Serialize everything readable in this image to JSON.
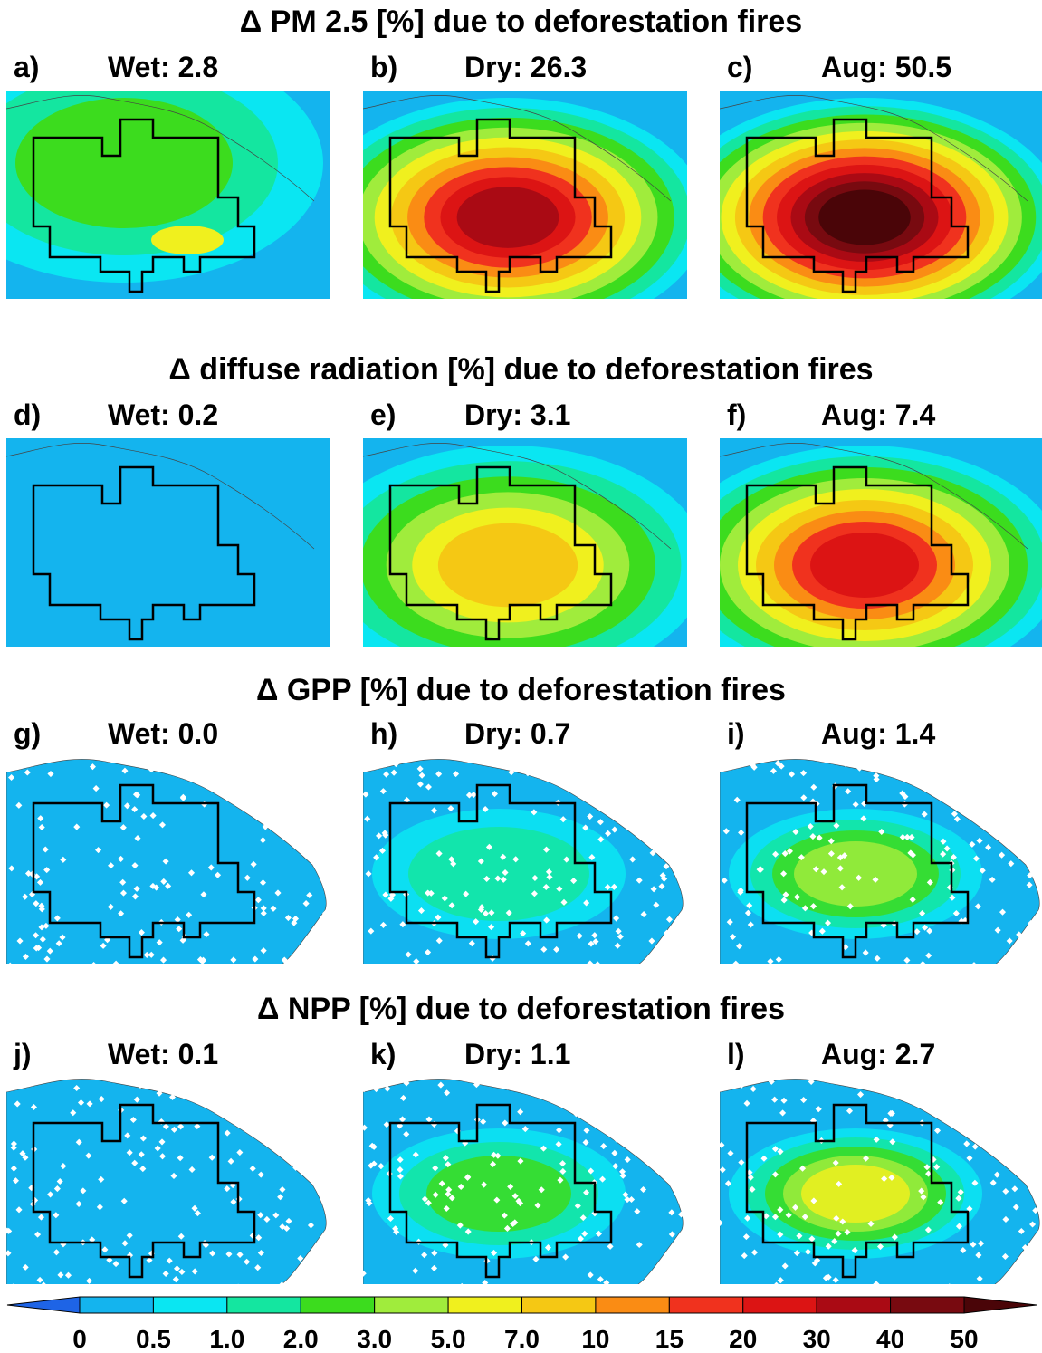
{
  "rows": [
    {
      "title": "Δ PM 2.5 [%] due to deforestation fires",
      "panels": [
        {
          "letter": "a)",
          "label": "Wet: 2.8",
          "intensity": 0.28,
          "style": "smooth"
        },
        {
          "letter": "b)",
          "label": "Dry: 26.3",
          "intensity": 0.82,
          "style": "smooth"
        },
        {
          "letter": "c)",
          "label": "Aug: 50.5",
          "intensity": 1.0,
          "style": "smooth"
        }
      ]
    },
    {
      "title": "Δ diffuse radiation [%] due to deforestation fires",
      "panels": [
        {
          "letter": "d)",
          "label": "Wet: 0.2",
          "intensity": 0.04,
          "style": "smooth"
        },
        {
          "letter": "e)",
          "label": "Dry: 3.1",
          "intensity": 0.5,
          "style": "smooth"
        },
        {
          "letter": "f)",
          "label": "Aug: 7.4",
          "intensity": 0.72,
          "style": "smooth"
        }
      ]
    },
    {
      "title": "Δ GPP [%] due to deforestation fires",
      "panels": [
        {
          "letter": "g)",
          "label": "Wet: 0.0",
          "intensity": 0.0,
          "style": "patchy"
        },
        {
          "letter": "h)",
          "label": "Dry: 0.7",
          "intensity": 0.18,
          "style": "patchy"
        },
        {
          "letter": "i)",
          "label": "Aug: 1.4",
          "intensity": 0.3,
          "style": "patchy"
        }
      ]
    },
    {
      "title": "Δ NPP [%] due to deforestation fires",
      "panels": [
        {
          "letter": "j)",
          "label": "Wet: 0.1",
          "intensity": 0.02,
          "style": "patchy"
        },
        {
          "letter": "k)",
          "label": "Dry: 1.1",
          "intensity": 0.26,
          "style": "patchy"
        },
        {
          "letter": "l)",
          "label": "Aug: 2.7",
          "intensity": 0.44,
          "style": "patchy"
        }
      ]
    }
  ],
  "colorbar": {
    "tick_labels": [
      "0",
      "0.5",
      "1.0",
      "2.0",
      "3.0",
      "5.0",
      "7.0",
      "10",
      "15",
      "20",
      "30",
      "40",
      "50"
    ],
    "colors": [
      "#1e64e6",
      "#14b4ee",
      "#0ae6f2",
      "#14e6a0",
      "#3cdc1e",
      "#a0ec3c",
      "#f0f01e",
      "#f5c814",
      "#fa8c14",
      "#f0321e",
      "#dc1414",
      "#aa0a14",
      "#780a10",
      "#4a0508"
    ],
    "background_color": "#14b4ee",
    "ocean_color": "#14b4ee",
    "missing_color": "#ffffff"
  }
}
